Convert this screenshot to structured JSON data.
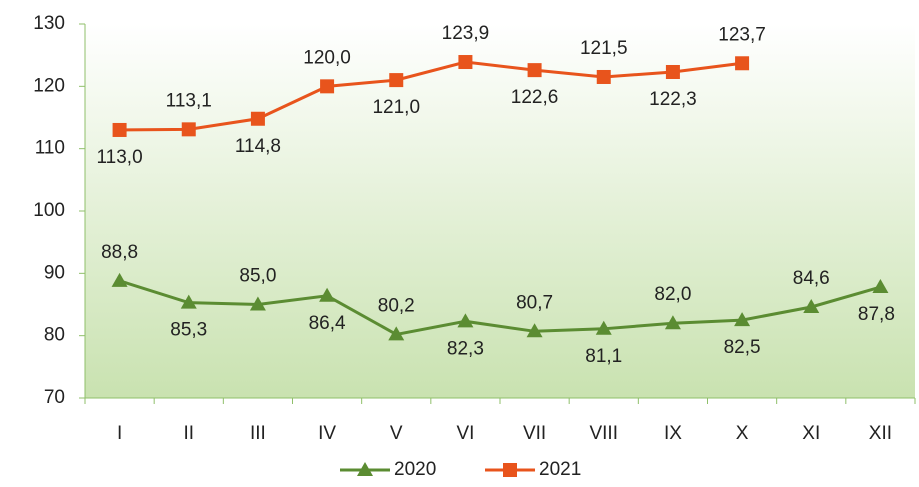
{
  "chart_data": {
    "type": "line",
    "categories": [
      "I",
      "II",
      "III",
      "IV",
      "V",
      "VI",
      "VII",
      "VIII",
      "IX",
      "X",
      "XI",
      "XII"
    ],
    "series": [
      {
        "name": "2020",
        "color": "#5b8c32",
        "marker": "triangle",
        "values": [
          88.8,
          85.3,
          85.0,
          86.4,
          80.2,
          82.3,
          80.7,
          81.1,
          82.0,
          82.5,
          84.6,
          87.8
        ],
        "value_labels": [
          "88,8",
          "85,3",
          "85,0",
          "86,4",
          "80,2",
          "82,3",
          "80,7",
          "81,1",
          "82,0",
          "82,5",
          "84,6",
          "87,8"
        ]
      },
      {
        "name": "2021",
        "color": "#e8541c",
        "marker": "square",
        "values": [
          113.0,
          113.1,
          114.8,
          120.0,
          121.0,
          123.9,
          122.6,
          121.5,
          122.3,
          123.7,
          null,
          null
        ],
        "value_labels": [
          "113,0",
          "113,1",
          "114,8",
          "120,0",
          "121,0",
          "123,9",
          "122,6",
          "121,5",
          "122,3",
          "123,7",
          null,
          null
        ]
      }
    ],
    "ylim": [
      70,
      130
    ],
    "yticks": [
      70,
      80,
      90,
      100,
      110,
      120,
      130
    ],
    "legend": "bottom"
  }
}
